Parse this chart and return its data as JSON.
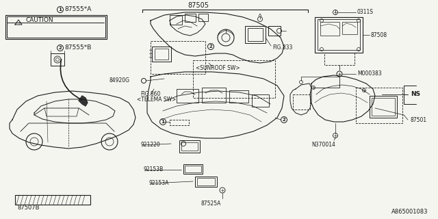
{
  "bg_color": "#f5f5f0",
  "line_color": "#1a1a1a",
  "fig_width": 6.4,
  "fig_height": 3.2,
  "dpi": 100,
  "part_number_bottom_right": "A865001083",
  "labels": {
    "top_center": "87505",
    "part1_label": "87555*A",
    "caution_text": "CAUTION",
    "part2_label": "87555*B",
    "part_84920G": "84920G",
    "part_FIG860": "FIG.860",
    "part_TELEMA": "<TELEMA SW>",
    "part_FIG833": "FIG.833",
    "part_SUNROOF": "<SUNROOF SW>",
    "part_921220": "921220",
    "part_92153B": "92153B",
    "part_92153A": "92153A",
    "part_87507B": "87507B",
    "part_87525A": "87525A",
    "part_0311S": "0311S",
    "part_87508": "87508",
    "part_M000383": "M000383",
    "part_NS": "NS",
    "part_N370014": "N370014",
    "part_87501": "87501"
  }
}
